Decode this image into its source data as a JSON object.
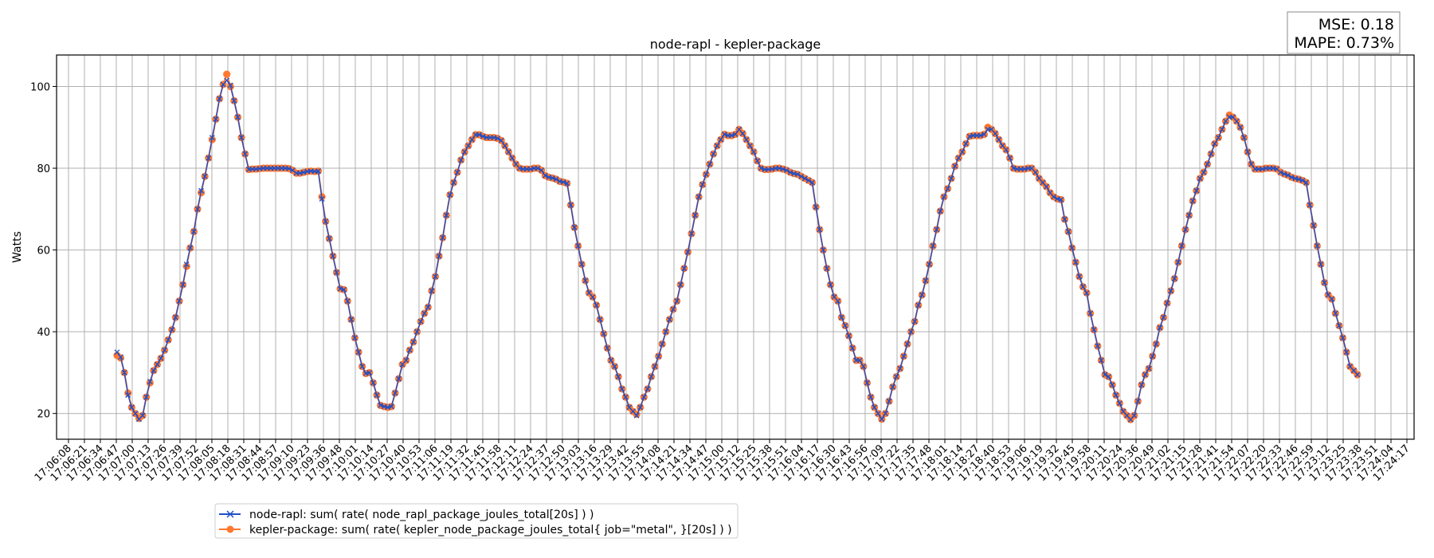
{
  "chart_data": {
    "type": "line",
    "title": "node-rapl - kepler-package",
    "xlabel": "",
    "ylabel": "Watts",
    "ylim": [
      13.7,
      107.7
    ],
    "yticks": [
      20,
      40,
      60,
      80,
      100
    ],
    "grid": true,
    "legend_placement": "bottom-left, below plot",
    "x_origin_time": "17:06:08",
    "xlim_seconds": [
      -9.7,
      1094.8
    ],
    "xtick_step_seconds": 12.964,
    "xtick_labels": [
      "17:06:08",
      "17:06:21",
      "17:06:34",
      "17:06:47",
      "17:07:00",
      "17:07:13",
      "17:07:26",
      "17:07:39",
      "17:07:52",
      "17:08:05",
      "17:08:18",
      "17:08:31",
      "17:08:44",
      "17:08:57",
      "17:09:10",
      "17:09:23",
      "17:09:36",
      "17:09:48",
      "17:10:01",
      "17:10:14",
      "17:10:27",
      "17:10:40",
      "17:10:53",
      "17:11:06",
      "17:11:19",
      "17:11:32",
      "17:11:45",
      "17:11:58",
      "17:12:11",
      "17:12:24",
      "17:12:37",
      "17:12:50",
      "17:13:03",
      "17:13:16",
      "17:13:29",
      "17:13:42",
      "17:13:55",
      "17:14:08",
      "17:14:21",
      "17:14:34",
      "17:14:47",
      "17:15:00",
      "17:15:12",
      "17:15:25",
      "17:15:38",
      "17:15:51",
      "17:16:04",
      "17:16:17",
      "17:16:30",
      "17:16:43",
      "17:16:56",
      "17:17:09",
      "17:17:22",
      "17:17:35",
      "17:17:48",
      "17:18:01",
      "17:18:14",
      "17:18:27",
      "17:18:40",
      "17:18:53",
      "17:19:06",
      "17:19:19",
      "17:19:32",
      "17:19:45",
      "17:19:58",
      "17:20:11",
      "17:20:24",
      "17:20:36",
      "17:20:49",
      "17:21:02",
      "17:21:15",
      "17:21:28",
      "17:21:41",
      "17:21:54",
      "17:22:07",
      "17:22:20",
      "17:22:33",
      "17:22:46",
      "17:22:59",
      "17:23:12",
      "17:23:25",
      "17:23:38",
      "17:23:51",
      "17:24:04",
      "17:24:17"
    ],
    "series_start_seconds": 39.5,
    "series_step_seconds": 2.977,
    "series": [
      {
        "name": "node-rapl: sum( rate( node_rapl_package_joules_total[20s] ) )",
        "color": "#1f4fc8",
        "marker": "x",
        "values": [
          35,
          33.8,
          30,
          24.5,
          21.5,
          20,
          18.6,
          19.5,
          24,
          27.8,
          30.5,
          32,
          33.5,
          35.5,
          38,
          40.5,
          43.5,
          47.5,
          51.5,
          56.5,
          60.5,
          64.5,
          70,
          74.5,
          78,
          82.5,
          87.5,
          92,
          97,
          100.5,
          101.5,
          100.3,
          96.5,
          92.5,
          87.5,
          83.5,
          79.7,
          79.8,
          79.8,
          79.9,
          80,
          80,
          80,
          80,
          80,
          80,
          80,
          79.9,
          79.5,
          78.8,
          78.8,
          79,
          79.2,
          79.3,
          79.2,
          79.3,
          72.5,
          67,
          62.8,
          58.5,
          54.5,
          50.5,
          50.3,
          47.5,
          43,
          38.5,
          35,
          31.5,
          29.8,
          30,
          27.5,
          24.5,
          22,
          21.7,
          21.5,
          21.7,
          25,
          28.5,
          32,
          33,
          35.5,
          37.5,
          40,
          42.5,
          44.5,
          46,
          50,
          53.5,
          58.5,
          63,
          68.5,
          73.5,
          76.5,
          79,
          82,
          84,
          85.5,
          87,
          88.2,
          88.2,
          87.8,
          87.5,
          87.5,
          87.5,
          87.3,
          86.8,
          85.5,
          84,
          82.5,
          81,
          80,
          79.8,
          79.8,
          79.8,
          80,
          80,
          79.5,
          78.2,
          77.8,
          77.6,
          77.3,
          76.8,
          76.6,
          76.3,
          71,
          65.5,
          61,
          56.5,
          52.5,
          49.5,
          48.5,
          46.5,
          43,
          39.5,
          36,
          33,
          31.5,
          29,
          26,
          24,
          21.5,
          20.5,
          19.5,
          21.5,
          24,
          26,
          29,
          31.5,
          34,
          37,
          40,
          43,
          45.5,
          47.5,
          51.5,
          55.5,
          59.5,
          64,
          68.5,
          73,
          76,
          78.5,
          81,
          83.5,
          85.5,
          87,
          88.3,
          88,
          88,
          88.3,
          89.5,
          88.5,
          87,
          85.5,
          84,
          81.8,
          80,
          79.7,
          79.7,
          79.8,
          80,
          80,
          79.8,
          79.5,
          79,
          78.7,
          78.5,
          78,
          77.5,
          77,
          76.5,
          70.5,
          65,
          60,
          55.5,
          51.5,
          48.5,
          47.5,
          43.5,
          41.5,
          39,
          36,
          33,
          33,
          31.5,
          27.5,
          24,
          21.5,
          20,
          18.6,
          20,
          23,
          26.5,
          29,
          31,
          34,
          37,
          40,
          42.5,
          46.5,
          49,
          52.5,
          56.5,
          61,
          65,
          69.5,
          73,
          75,
          77.5,
          80.5,
          82.5,
          84,
          86,
          87.8,
          88,
          88,
          88,
          88.3,
          89.5,
          89.5,
          88.5,
          87,
          85.5,
          84.5,
          82.5,
          80,
          79.8,
          79.8,
          79.8,
          80,
          80,
          79,
          77.5,
          76.5,
          75.5,
          74,
          73,
          72.5,
          72.3,
          67.5,
          64.5,
          60.5,
          57,
          53.5,
          51,
          49.5,
          44.5,
          40.5,
          36.5,
          33,
          29.5,
          29,
          27,
          24.5,
          22.5,
          20.5,
          19.5,
          18.5,
          19.5,
          23,
          27,
          29.5,
          31,
          34,
          37,
          41,
          43.5,
          47,
          50,
          53,
          57,
          61,
          65,
          68.5,
          72,
          74.5,
          77.5,
          79,
          81,
          83.5,
          86,
          87.5,
          89.5,
          91.5,
          92.5,
          92.5,
          91.5,
          90,
          87.5,
          84,
          81,
          79.8,
          79.8,
          79.8,
          80,
          80,
          80,
          79.8,
          79,
          78.6,
          78.3,
          77.8,
          77.5,
          77.3,
          77,
          76.5,
          71,
          66,
          61,
          56.5,
          52,
          49,
          48,
          44.5,
          41.5,
          38.5,
          35,
          31.5,
          30.5,
          29.5
        ]
      },
      {
        "name": "kepler-package: sum( rate( kepler_node_package_joules_total{ job=\"metal\", }[20s] ) )",
        "color": "#ff7730",
        "marker": "o",
        "values": [
          34.2,
          33.6,
          30,
          25,
          21.5,
          20,
          18.8,
          19.5,
          24,
          27.5,
          30.5,
          32,
          33.5,
          35.5,
          38,
          40.5,
          43.5,
          47.5,
          51.5,
          56,
          60.5,
          64.5,
          70,
          74,
          78,
          82.5,
          87,
          92,
          97,
          100.5,
          103,
          100,
          96.5,
          92.5,
          87.5,
          83.5,
          79.7,
          79.8,
          79.8,
          79.9,
          80,
          80,
          80,
          80,
          80,
          80,
          80,
          79.9,
          79.5,
          78.8,
          78.8,
          79,
          79.2,
          79.3,
          79.2,
          79.3,
          73,
          67,
          62.8,
          58.5,
          54.5,
          50.5,
          50.3,
          47.5,
          43,
          38.5,
          35,
          31.5,
          29.8,
          30,
          27.5,
          24.5,
          22,
          21.7,
          21.5,
          21.7,
          25,
          28.5,
          32,
          33,
          35.5,
          37.5,
          40,
          42.5,
          44.5,
          46,
          50,
          53.5,
          58.5,
          63,
          68.5,
          73.5,
          76.5,
          79,
          82,
          84,
          85.5,
          87,
          88.2,
          88.2,
          87.8,
          87.5,
          87.5,
          87.5,
          87.3,
          86.8,
          85.5,
          84,
          82.5,
          81,
          80,
          79.8,
          79.8,
          79.8,
          80,
          80,
          79.5,
          78.2,
          77.8,
          77.6,
          77.3,
          76.8,
          76.6,
          76.3,
          71,
          65.5,
          61,
          56.5,
          52.5,
          49.5,
          48.5,
          46.5,
          43,
          39.5,
          36,
          33,
          31.5,
          29,
          26,
          24,
          21.5,
          20.5,
          19.8,
          21.5,
          24,
          26,
          29,
          31.5,
          34,
          37,
          40,
          43,
          45.5,
          47.5,
          51.5,
          55.5,
          59.5,
          64,
          68.5,
          73,
          76,
          78.5,
          81,
          83.5,
          85.5,
          87,
          88.3,
          88,
          88,
          88.3,
          89.5,
          88.5,
          87,
          85.5,
          84,
          81.8,
          80,
          79.7,
          79.7,
          79.8,
          80,
          80,
          79.8,
          79.5,
          79,
          78.7,
          78.5,
          78,
          77.5,
          77,
          76.5,
          70.5,
          65,
          60,
          55.5,
          51.5,
          48.5,
          47.5,
          43.5,
          41.5,
          39,
          36,
          33,
          33,
          31.5,
          27.5,
          24,
          21.5,
          20,
          18.6,
          20,
          23,
          26.5,
          29,
          31,
          34,
          37,
          40,
          42.5,
          46.5,
          49,
          52.5,
          56.5,
          61,
          65,
          69.5,
          73,
          75,
          77.5,
          80.5,
          82.5,
          84,
          86,
          87.8,
          88,
          88,
          88,
          88.3,
          90,
          89.5,
          88.5,
          87,
          85.5,
          84.5,
          82.5,
          80,
          79.8,
          79.8,
          79.8,
          80,
          80,
          79,
          77.5,
          76.5,
          75.5,
          74,
          73,
          72.5,
          72.3,
          67.5,
          64.5,
          60.5,
          57,
          53.5,
          51,
          49.5,
          44.5,
          40.5,
          36.5,
          33,
          29.5,
          29,
          27,
          24.5,
          22.5,
          20.5,
          19.5,
          18.5,
          19.5,
          23,
          27,
          29.5,
          31,
          34,
          37,
          41,
          43.5,
          47,
          50,
          53,
          57,
          61,
          65,
          68.5,
          72,
          74.5,
          77.5,
          79,
          81,
          83.5,
          86,
          87.5,
          89.5,
          91.5,
          93,
          92.5,
          91.5,
          90,
          87.5,
          84,
          81,
          79.8,
          79.8,
          79.8,
          80,
          80,
          80,
          79.8,
          79,
          78.6,
          78.3,
          77.8,
          77.5,
          77.3,
          77,
          76.5,
          71,
          66,
          61,
          56.5,
          52,
          49,
          48,
          44.5,
          41.5,
          38.5,
          35,
          31.5,
          30.5,
          29.5
        ]
      }
    ],
    "annotation": {
      "mse": "MSE: 0.18",
      "mape": "MAPE: 0.73%"
    }
  }
}
